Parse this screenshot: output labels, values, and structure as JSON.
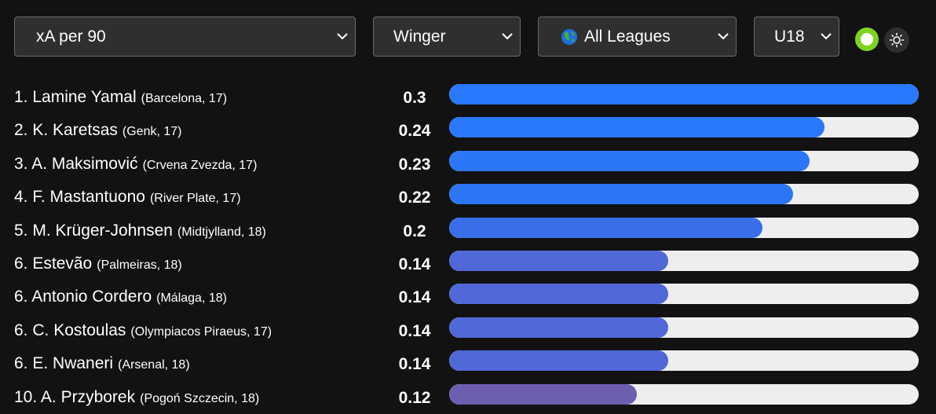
{
  "filters": {
    "metric": "xA per 90",
    "position": "Winger",
    "league": "All Leagues",
    "age": "U18"
  },
  "icons": {
    "chevron": "chevron-down-icon",
    "globe": "globe-icon",
    "toggle": "status-toggle-icon",
    "theme": "sun-icon"
  },
  "colors": {
    "toggle_active": "#7ed321",
    "bar_track": "#eeeeee"
  },
  "players": [
    {
      "rank": "1.",
      "name": "Lamine Yamal",
      "meta": "(Barcelona, 17)",
      "value": "0.3",
      "fraction": 1.0,
      "color": "#2979ff"
    },
    {
      "rank": "2.",
      "name": "K. Karetsas",
      "meta": "(Genk, 17)",
      "value": "0.24",
      "fraction": 0.8,
      "color": "#2a78fb"
    },
    {
      "rank": "3.",
      "name": "A. Maksimović",
      "meta": "(Crvena Zvezda, 17)",
      "value": "0.23",
      "fraction": 0.767,
      "color": "#2b77f8"
    },
    {
      "rank": "4.",
      "name": "F. Mastantuono",
      "meta": "(River Plate, 17)",
      "value": "0.22",
      "fraction": 0.733,
      "color": "#2c75f4"
    },
    {
      "rank": "5.",
      "name": "M. Krüger-Johnsen",
      "meta": "(Midtjylland, 18)",
      "value": "0.2",
      "fraction": 0.667,
      "color": "#3a6ee8"
    },
    {
      "rank": "6.",
      "name": "Estevão",
      "meta": "(Palmeiras, 18)",
      "value": "0.14",
      "fraction": 0.467,
      "color": "#5068d8"
    },
    {
      "rank": "6.",
      "name": "Antonio Cordero",
      "meta": "(Málaga, 18)",
      "value": "0.14",
      "fraction": 0.467,
      "color": "#5068d8"
    },
    {
      "rank": "6.",
      "name": "C. Kostoulas",
      "meta": "(Olympiacos Piraeus, 17)",
      "value": "0.14",
      "fraction": 0.467,
      "color": "#5068d8"
    },
    {
      "rank": "6.",
      "name": "E. Nwaneri",
      "meta": "(Arsenal, 18)",
      "value": "0.14",
      "fraction": 0.467,
      "color": "#5068d8"
    },
    {
      "rank": "10.",
      "name": "A. Przyborek",
      "meta": "(Pogoń Szczecin, 18)",
      "value": "0.12",
      "fraction": 0.4,
      "color": "#6e5eb0"
    }
  ]
}
